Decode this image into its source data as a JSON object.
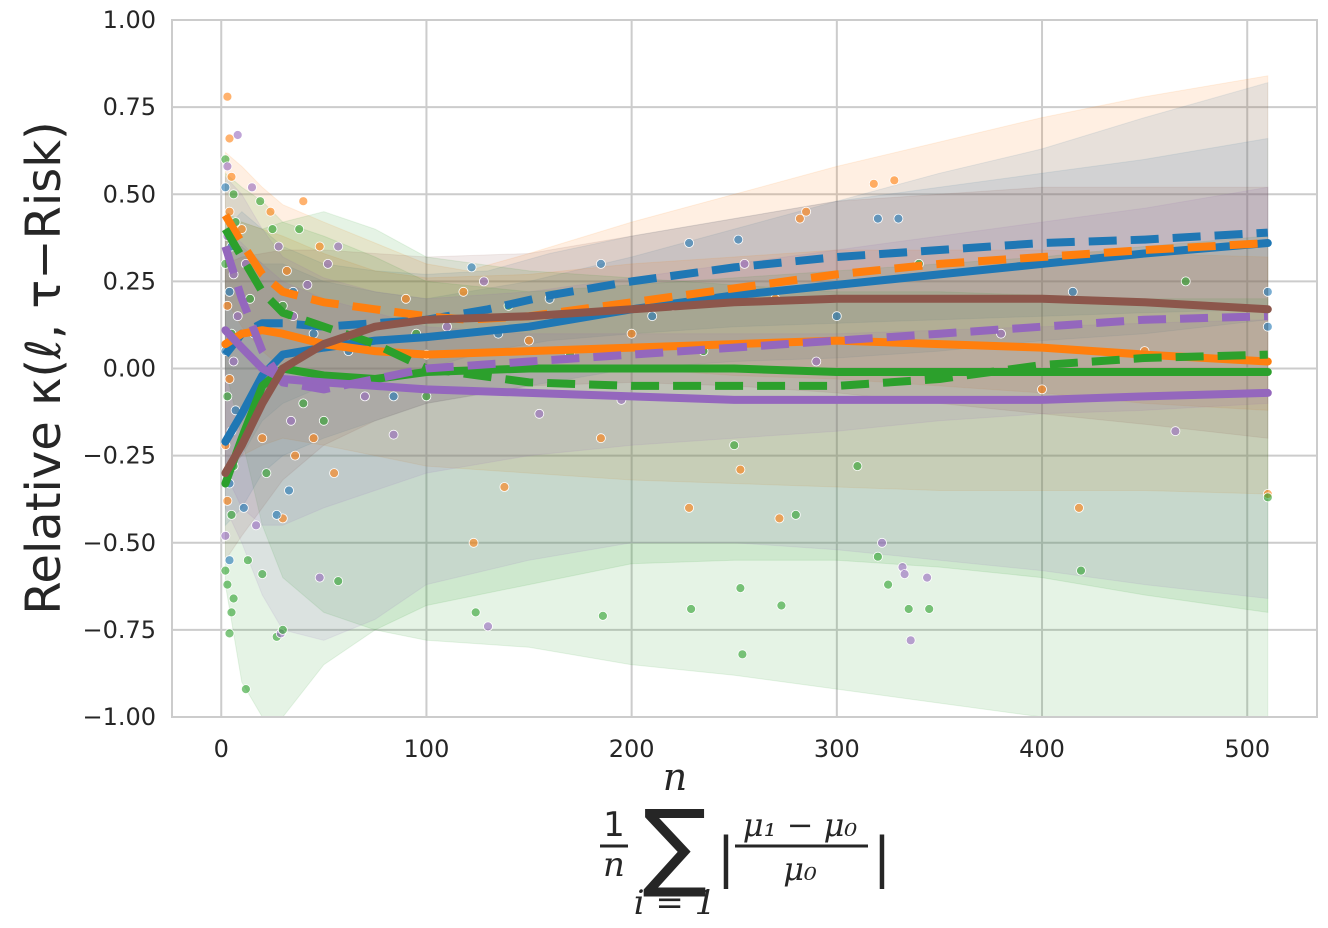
{
  "chart_data": {
    "type": "line",
    "ylabel": "Relative κ(ℓ, τ−Risk)",
    "xlabel": {
      "frac_num": "1",
      "frac_den": "n",
      "sum_upper": "n",
      "sum_lower": "i = 1",
      "inner_num": "μ₁ − μ₀",
      "inner_den": "μ₀"
    },
    "xlim": [
      -24,
      534
    ],
    "ylim": [
      -1.0,
      1.0
    ],
    "x_ticks": [
      "0",
      "100",
      "200",
      "300",
      "400",
      "500"
    ],
    "y_ticks": [
      "1.00",
      "0.75",
      "0.50",
      "0.25",
      "0.00",
      "−0.25",
      "−0.50",
      "−0.75",
      "−1.00"
    ],
    "grid": true,
    "legend": "none",
    "series": [
      {
        "color": "#1f77b4",
        "style": "solid",
        "x": [
          2,
          10,
          20,
          30,
          50,
          75,
          100,
          150,
          200,
          250,
          300,
          350,
          400,
          450,
          510
        ],
        "y": [
          -0.21,
          -0.13,
          -0.02,
          0.04,
          0.06,
          0.08,
          0.09,
          0.12,
          0.17,
          0.21,
          0.24,
          0.27,
          0.3,
          0.33,
          0.36
        ],
        "band_upper": [
          0.35,
          0.35,
          0.3,
          0.3,
          0.25,
          0.22,
          0.2,
          0.25,
          0.32,
          0.4,
          0.48,
          0.56,
          0.63,
          0.72,
          0.82
        ],
        "band_lower": [
          -0.45,
          -0.4,
          -0.3,
          -0.25,
          -0.2,
          -0.15,
          -0.1,
          -0.05,
          0.0,
          0.02,
          0.03,
          0.05,
          0.08,
          0.1,
          0.14
        ]
      },
      {
        "color": "#1f77b4",
        "style": "dashed",
        "x": [
          2,
          10,
          20,
          30,
          50,
          75,
          100,
          130,
          160,
          200,
          250,
          300,
          350,
          400,
          450,
          510
        ],
        "y": [
          0.04,
          0.1,
          0.13,
          0.13,
          0.12,
          0.13,
          0.14,
          0.17,
          0.21,
          0.25,
          0.29,
          0.32,
          0.34,
          0.36,
          0.37,
          0.39
        ],
        "band_upper": [
          0.4,
          0.45,
          0.4,
          0.35,
          0.3,
          0.28,
          0.27,
          0.28,
          0.33,
          0.38,
          0.43,
          0.48,
          0.52,
          0.56,
          0.6,
          0.66
        ],
        "band_lower": [
          -0.3,
          -0.25,
          -0.15,
          -0.1,
          -0.05,
          -0.02,
          0.0,
          0.05,
          0.08,
          0.1,
          0.12,
          0.13,
          0.14,
          0.15,
          0.16,
          0.17
        ]
      },
      {
        "color": "#ff7f0e",
        "style": "solid",
        "x": [
          2,
          10,
          20,
          30,
          50,
          75,
          100,
          150,
          200,
          250,
          300,
          350,
          400,
          450,
          510
        ],
        "y": [
          0.07,
          0.1,
          0.11,
          0.1,
          0.07,
          0.05,
          0.04,
          0.05,
          0.06,
          0.07,
          0.08,
          0.07,
          0.06,
          0.04,
          0.02
        ],
        "band_upper": [
          0.4,
          0.42,
          0.4,
          0.38,
          0.33,
          0.28,
          0.26,
          0.27,
          0.3,
          0.32,
          0.34,
          0.34,
          0.34,
          0.33,
          0.32
        ],
        "band_lower": [
          -0.3,
          -0.25,
          -0.22,
          -0.2,
          -0.22,
          -0.25,
          -0.28,
          -0.3,
          -0.32,
          -0.33,
          -0.34,
          -0.35,
          -0.35,
          -0.35,
          -0.36
        ]
      },
      {
        "color": "#ff7f0e",
        "style": "dashed",
        "x": [
          2,
          10,
          20,
          30,
          50,
          75,
          100,
          120,
          150,
          200,
          250,
          300,
          350,
          400,
          450,
          510
        ],
        "y": [
          0.44,
          0.36,
          0.27,
          0.22,
          0.19,
          0.17,
          0.15,
          0.14,
          0.15,
          0.19,
          0.23,
          0.27,
          0.3,
          0.32,
          0.34,
          0.36
        ],
        "band_upper": [
          0.62,
          0.58,
          0.52,
          0.47,
          0.42,
          0.36,
          0.3,
          0.28,
          0.33,
          0.42,
          0.5,
          0.58,
          0.65,
          0.72,
          0.78,
          0.84
        ],
        "band_lower": [
          0.2,
          0.12,
          0.05,
          0.0,
          -0.03,
          -0.03,
          -0.02,
          0.0,
          0.0,
          0.0,
          -0.02,
          -0.03,
          -0.05,
          -0.07,
          -0.1,
          -0.12
        ]
      },
      {
        "color": "#2ca02c",
        "style": "solid",
        "x": [
          2,
          10,
          20,
          30,
          50,
          75,
          100,
          150,
          200,
          250,
          300,
          350,
          400,
          450,
          510
        ],
        "y": [
          -0.33,
          -0.2,
          -0.05,
          0.0,
          -0.02,
          -0.03,
          -0.01,
          0.0,
          0.0,
          0.0,
          -0.01,
          -0.01,
          -0.01,
          -0.01,
          -0.01
        ],
        "band_upper": [
          0.45,
          0.42,
          0.4,
          0.42,
          0.45,
          0.4,
          0.32,
          0.28,
          0.26,
          0.24,
          0.22,
          0.22,
          0.21,
          0.2,
          0.2
        ],
        "band_lower": [
          -0.62,
          -0.9,
          -1.05,
          -1.0,
          -0.85,
          -0.75,
          -0.68,
          -0.62,
          -0.56,
          -0.55,
          -0.55,
          -0.57,
          -0.6,
          -0.65,
          -0.7
        ]
      },
      {
        "color": "#2ca02c",
        "style": "dashed",
        "x": [
          2,
          10,
          20,
          30,
          50,
          75,
          100,
          150,
          200,
          250,
          300,
          350,
          400,
          450,
          510
        ],
        "y": [
          0.4,
          0.32,
          0.22,
          0.16,
          0.12,
          0.07,
          0.0,
          -0.04,
          -0.05,
          -0.05,
          -0.05,
          -0.03,
          0.01,
          0.03,
          0.04
        ],
        "band_upper": [
          0.56,
          0.52,
          0.48,
          0.42,
          0.38,
          0.32,
          0.25,
          0.22,
          0.24,
          0.26,
          0.28,
          0.3,
          0.32,
          0.35,
          0.38
        ],
        "band_lower": [
          0.0,
          -0.2,
          -0.45,
          -0.6,
          -0.7,
          -0.75,
          -0.78,
          -0.8,
          -0.85,
          -0.88,
          -0.92,
          -0.96,
          -1.0,
          -1.0,
          -1.0
        ]
      },
      {
        "color": "#9467bd",
        "style": "solid",
        "x": [
          2,
          10,
          20,
          30,
          50,
          75,
          100,
          150,
          200,
          250,
          300,
          350,
          400,
          450,
          510
        ],
        "y": [
          0.11,
          0.06,
          0.0,
          -0.03,
          -0.04,
          -0.05,
          -0.06,
          -0.07,
          -0.08,
          -0.09,
          -0.09,
          -0.09,
          -0.09,
          -0.08,
          -0.07
        ],
        "band_upper": [
          0.4,
          0.36,
          0.3,
          0.25,
          0.2,
          0.16,
          0.12,
          0.1,
          0.1,
          0.1,
          0.1,
          0.11,
          0.12,
          0.13,
          0.14
        ],
        "band_lower": [
          -0.4,
          -0.5,
          -0.65,
          -0.75,
          -0.78,
          -0.72,
          -0.62,
          -0.55,
          -0.5,
          -0.5,
          -0.52,
          -0.55,
          -0.58,
          -0.62,
          -0.66
        ]
      },
      {
        "color": "#9467bd",
        "style": "dashed",
        "x": [
          2,
          10,
          20,
          30,
          50,
          75,
          100,
          150,
          200,
          250,
          300,
          350,
          400,
          450,
          510
        ],
        "y": [
          0.35,
          0.2,
          0.05,
          -0.04,
          -0.06,
          -0.03,
          0.0,
          0.02,
          0.04,
          0.06,
          0.08,
          0.1,
          0.12,
          0.14,
          0.15
        ],
        "band_upper": [
          0.55,
          0.5,
          0.4,
          0.32,
          0.26,
          0.22,
          0.2,
          0.22,
          0.26,
          0.3,
          0.34,
          0.38,
          0.42,
          0.46,
          0.52
        ],
        "band_lower": [
          -0.3,
          -0.4,
          -0.45,
          -0.45,
          -0.4,
          -0.35,
          -0.3,
          -0.25,
          -0.22,
          -0.2,
          -0.18,
          -0.15,
          -0.13,
          -0.12,
          -0.1
        ]
      },
      {
        "color": "#8c564b",
        "style": "solid",
        "x": [
          2,
          10,
          20,
          30,
          50,
          75,
          100,
          150,
          200,
          250,
          300,
          350,
          400,
          450,
          510
        ],
        "y": [
          -0.3,
          -0.22,
          -0.1,
          0.0,
          0.07,
          0.12,
          0.14,
          0.15,
          0.17,
          0.19,
          0.2,
          0.2,
          0.2,
          0.19,
          0.17
        ],
        "band_upper": [
          0.3,
          0.32,
          0.33,
          0.34,
          0.34,
          0.33,
          0.32,
          0.33,
          0.38,
          0.43,
          0.48,
          0.5,
          0.52,
          0.52,
          0.52
        ],
        "band_lower": [
          -0.55,
          -0.48,
          -0.4,
          -0.32,
          -0.22,
          -0.15,
          -0.1,
          -0.05,
          -0.04,
          -0.05,
          -0.07,
          -0.1,
          -0.13,
          -0.16,
          -0.2
        ]
      }
    ],
    "scatter_colors": [
      "#1f77b4",
      "#ff7f0e",
      "#2ca02c",
      "#9467bd"
    ],
    "scatter": [
      [
        3,
        0.78,
        1
      ],
      [
        4,
        0.66,
        1
      ],
      [
        8,
        0.67,
        3
      ],
      [
        2,
        0.6,
        2
      ],
      [
        3,
        0.58,
        3
      ],
      [
        5,
        0.55,
        1
      ],
      [
        2,
        0.52,
        0
      ],
      [
        6,
        0.5,
        2
      ],
      [
        4,
        0.45,
        1
      ],
      [
        7,
        0.42,
        2
      ],
      [
        3,
        0.38,
        3
      ],
      [
        5,
        0.35,
        0
      ],
      [
        2,
        0.3,
        2
      ],
      [
        6,
        0.27,
        3
      ],
      [
        4,
        0.22,
        0
      ],
      [
        3,
        0.18,
        1
      ],
      [
        8,
        0.15,
        3
      ],
      [
        5,
        0.1,
        2
      ],
      [
        2,
        0.05,
        0
      ],
      [
        6,
        0.02,
        3
      ],
      [
        4,
        -0.03,
        1
      ],
      [
        3,
        -0.08,
        2
      ],
      [
        7,
        -0.12,
        0
      ],
      [
        5,
        -0.18,
        3
      ],
      [
        2,
        -0.22,
        1
      ],
      [
        6,
        -0.28,
        2
      ],
      [
        4,
        -0.33,
        0
      ],
      [
        3,
        -0.38,
        1
      ],
      [
        5,
        -0.42,
        2
      ],
      [
        2,
        -0.48,
        3
      ],
      [
        4,
        -0.55,
        0
      ],
      [
        3,
        -0.62,
        2
      ],
      [
        5,
        -0.7,
        2
      ],
      [
        4,
        -0.76,
        2
      ],
      [
        2,
        -0.58,
        2
      ],
      [
        6,
        -0.66,
        2
      ],
      [
        10,
        0.4,
        1
      ],
      [
        12,
        0.3,
        3
      ],
      [
        14,
        0.2,
        2
      ],
      [
        16,
        0.1,
        0
      ],
      [
        18,
        -0.05,
        3
      ],
      [
        20,
        -0.2,
        1
      ],
      [
        22,
        -0.3,
        2
      ],
      [
        24,
        0.45,
        1
      ],
      [
        15,
        0.52,
        3
      ],
      [
        19,
        0.48,
        2
      ],
      [
        11,
        -0.4,
        0
      ],
      [
        13,
        -0.55,
        2
      ],
      [
        17,
        -0.45,
        3
      ],
      [
        12,
        -0.92,
        2
      ],
      [
        20,
        -0.59,
        2
      ],
      [
        27,
        -0.77,
        2
      ],
      [
        29,
        -0.76,
        3
      ],
      [
        30,
        -0.75,
        2
      ],
      [
        25,
        0.4,
        2
      ],
      [
        28,
        0.35,
        3
      ],
      [
        32,
        0.28,
        1
      ],
      [
        35,
        0.22,
        0
      ],
      [
        30,
        0.18,
        2
      ],
      [
        34,
        -0.15,
        3
      ],
      [
        36,
        -0.25,
        1
      ],
      [
        33,
        -0.35,
        0
      ],
      [
        38,
        0.4,
        2
      ],
      [
        40,
        0.48,
        1
      ],
      [
        42,
        0.24,
        3
      ],
      [
        45,
        0.1,
        0
      ],
      [
        48,
        0.35,
        1
      ],
      [
        50,
        -0.15,
        2
      ],
      [
        52,
        0.3,
        3
      ],
      [
        55,
        -0.3,
        1
      ],
      [
        57,
        0.35,
        3
      ],
      [
        57,
        -0.61,
        2
      ],
      [
        48,
        -0.6,
        3
      ],
      [
        30,
        -0.43,
        1
      ],
      [
        27,
        -0.42,
        0
      ],
      [
        35,
        0.15,
        3
      ],
      [
        40,
        -0.1,
        2
      ],
      [
        45,
        -0.2,
        1
      ],
      [
        62,
        0.05,
        0
      ],
      [
        70,
        -0.08,
        3
      ],
      [
        84,
        -0.08,
        0
      ],
      [
        84,
        -0.19,
        3
      ],
      [
        90,
        0.2,
        1
      ],
      [
        95,
        0.1,
        2
      ],
      [
        100,
        0.04,
        0
      ],
      [
        100,
        -0.08,
        2
      ],
      [
        110,
        0.12,
        3
      ],
      [
        118,
        0.22,
        1
      ],
      [
        122,
        0.29,
        0
      ],
      [
        123,
        -0.5,
        1
      ],
      [
        124,
        -0.7,
        2
      ],
      [
        128,
        0.25,
        3
      ],
      [
        130,
        -0.74,
        3
      ],
      [
        135,
        0.1,
        0
      ],
      [
        138,
        -0.34,
        1
      ],
      [
        140,
        0.18,
        2
      ],
      [
        150,
        0.08,
        1
      ],
      [
        155,
        -0.13,
        3
      ],
      [
        160,
        0.2,
        0
      ],
      [
        170,
        0.04,
        2
      ],
      [
        185,
        0.3,
        0
      ],
      [
        185,
        -0.2,
        1
      ],
      [
        186,
        -0.71,
        2
      ],
      [
        195,
        -0.09,
        3
      ],
      [
        200,
        0.1,
        1
      ],
      [
        210,
        0.15,
        0
      ],
      [
        220,
        0.18,
        3
      ],
      [
        228,
        0.36,
        0
      ],
      [
        228,
        -0.4,
        1
      ],
      [
        229,
        -0.69,
        2
      ],
      [
        235,
        0.05,
        2
      ],
      [
        250,
        -0.22,
        2
      ],
      [
        252,
        0.37,
        0
      ],
      [
        253,
        -0.29,
        1
      ],
      [
        253,
        -0.63,
        2
      ],
      [
        254,
        -0.82,
        2
      ],
      [
        255,
        0.3,
        3
      ],
      [
        270,
        0.2,
        1
      ],
      [
        272,
        -0.43,
        1
      ],
      [
        273,
        -0.68,
        2
      ],
      [
        280,
        -0.42,
        2
      ],
      [
        282,
        0.43,
        1
      ],
      [
        285,
        0.45,
        1
      ],
      [
        290,
        0.02,
        3
      ],
      [
        300,
        0.15,
        0
      ],
      [
        310,
        -0.28,
        2
      ],
      [
        318,
        0.53,
        1
      ],
      [
        320,
        0.43,
        0
      ],
      [
        322,
        -0.5,
        3
      ],
      [
        320,
        -0.54,
        2
      ],
      [
        325,
        -0.62,
        2
      ],
      [
        328,
        0.54,
        1
      ],
      [
        330,
        0.43,
        0
      ],
      [
        332,
        -0.57,
        3
      ],
      [
        333,
        -0.59,
        3
      ],
      [
        335,
        -0.69,
        2
      ],
      [
        336,
        -0.78,
        3
      ],
      [
        340,
        0.3,
        2
      ],
      [
        344,
        -0.6,
        3
      ],
      [
        345,
        -0.69,
        2
      ],
      [
        380,
        0.1,
        3
      ],
      [
        400,
        -0.06,
        1
      ],
      [
        415,
        0.22,
        0
      ],
      [
        418,
        -0.4,
        1
      ],
      [
        419,
        -0.58,
        2
      ],
      [
        450,
        0.05,
        1
      ],
      [
        465,
        -0.18,
        3
      ],
      [
        470,
        0.25,
        2
      ],
      [
        510,
        0.22,
        0
      ],
      [
        510,
        0.12,
        0
      ],
      [
        510,
        -0.36,
        1
      ],
      [
        510,
        -0.37,
        2
      ]
    ]
  }
}
